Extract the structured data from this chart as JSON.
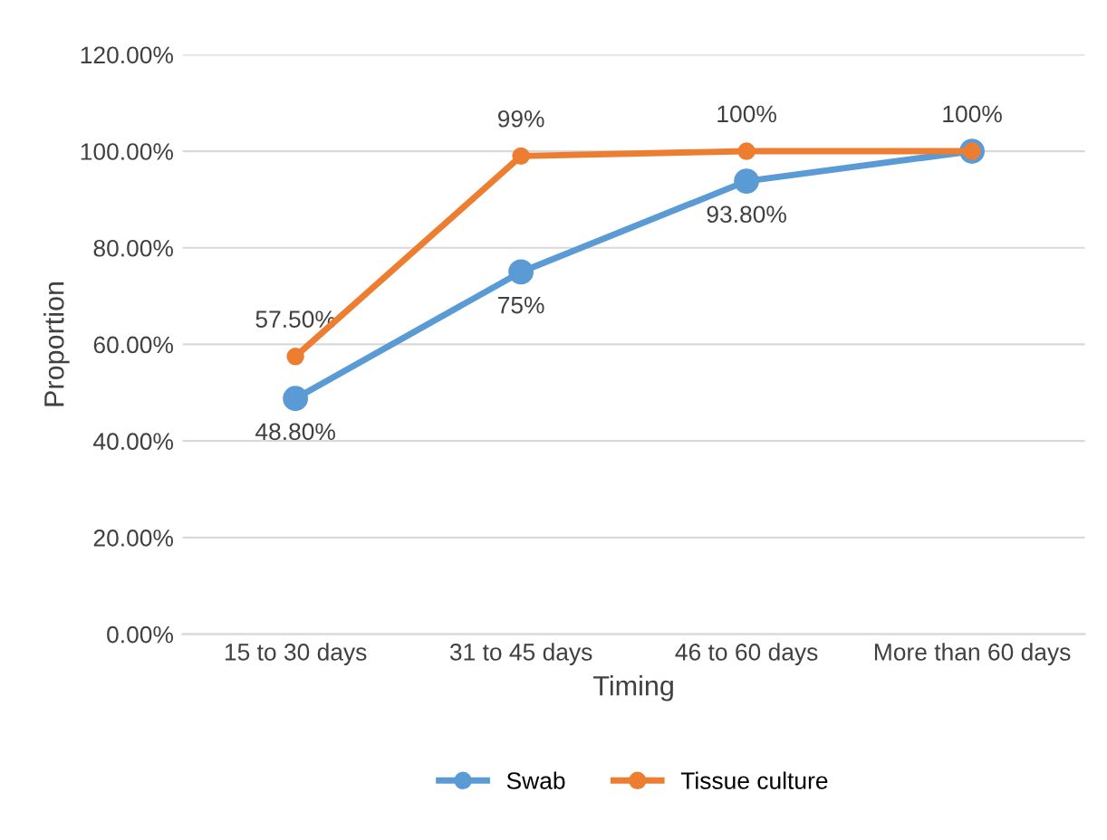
{
  "chart_data": {
    "type": "line",
    "xlabel": "Timing",
    "ylabel": "Proportion",
    "categories": [
      "15 to 30 days",
      "31 to 45 days",
      "46 to 60 days",
      "More than 60 days"
    ],
    "series": [
      {
        "name": "Swab",
        "color": "#5b9bd5",
        "values": [
          48.8,
          75,
          93.8,
          100
        ],
        "value_labels": [
          "48.80%",
          "75%",
          "93.80%",
          null
        ]
      },
      {
        "name": "Tissue culture",
        "color": "#ed7d31",
        "values": [
          57.5,
          99,
          100,
          100
        ],
        "value_labels": [
          "57.50%",
          "99%",
          "100%",
          "100%"
        ]
      }
    ],
    "ylim": [
      0,
      120
    ],
    "yticks": [
      {
        "value": 0,
        "label": "0.00%"
      },
      {
        "value": 20,
        "label": "20.00%"
      },
      {
        "value": 40,
        "label": "40.00%"
      },
      {
        "value": 60,
        "label": "60.00%"
      },
      {
        "value": 80,
        "label": "80.00%"
      },
      {
        "value": 100,
        "label": "100.00%"
      },
      {
        "value": 120,
        "label": "120.00%"
      }
    ],
    "grid": "y",
    "legend": "bottom",
    "marker": "circle",
    "line_style": "solid"
  }
}
